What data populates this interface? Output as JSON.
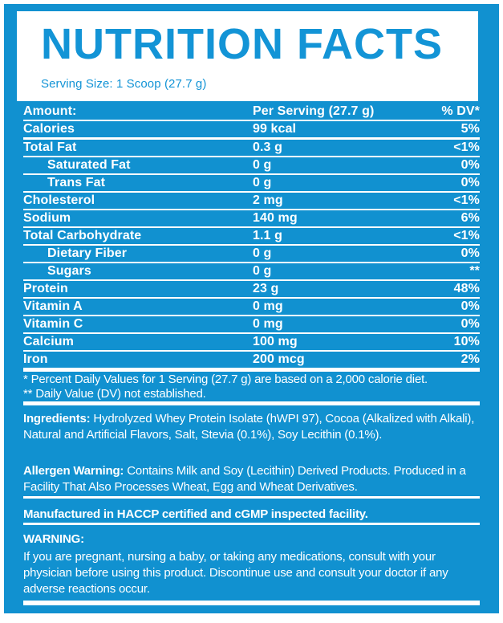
{
  "colors": {
    "blue": "#1191d0",
    "title-blue": "#1394d6",
    "white": "#ffffff"
  },
  "header": {
    "title": "NUTRITION FACTS",
    "serving_size": "Serving Size: 1 Scoop (27.7 g)"
  },
  "table": {
    "header": {
      "amount": "Amount:",
      "per_serving": "Per Serving (27.7 g)",
      "dv": "% DV*"
    },
    "rows": [
      {
        "label": "Calories",
        "value": "99 kcal",
        "dv": "5%",
        "indent": false
      },
      {
        "label": "Total Fat",
        "value": "0.3 g",
        "dv": "<1%",
        "indent": false
      },
      {
        "label": "Saturated Fat",
        "value": "0 g",
        "dv": "0%",
        "indent": true
      },
      {
        "label": "Trans Fat",
        "value": "0 g",
        "dv": "0%",
        "indent": true
      },
      {
        "label": "Cholesterol",
        "value": "2 mg",
        "dv": "<1%",
        "indent": false
      },
      {
        "label": "Sodium",
        "value": "140 mg",
        "dv": "6%",
        "indent": false
      },
      {
        "label": "Total Carbohydrate",
        "value": "1.1 g",
        "dv": "<1%",
        "indent": false
      },
      {
        "label": "Dietary Fiber",
        "value": "0 g",
        "dv": "0%",
        "indent": true
      },
      {
        "label": "Sugars",
        "value": "0 g",
        "dv": "**",
        "indent": true
      },
      {
        "label": "Protein",
        "value": "23 g",
        "dv": "48%",
        "indent": false
      },
      {
        "label": "Vitamin A",
        "value": "0 mg",
        "dv": "0%",
        "indent": false
      },
      {
        "label": "Vitamin C",
        "value": "0 mg",
        "dv": "0%",
        "indent": false
      },
      {
        "label": "Calcium",
        "value": "100 mg",
        "dv": "10%",
        "indent": false
      },
      {
        "label": "Iron",
        "value": "200 mcg",
        "dv": "2%",
        "indent": false
      }
    ]
  },
  "footnotes": [
    "* Percent Daily Values for 1 Serving (27.7 g) are based on a 2,000 calorie diet.",
    "** Daily Value (DV) not established."
  ],
  "sections": {
    "ingredients": {
      "lead": "Ingredients:",
      "text": "Hydrolyzed Whey Protein Isolate (hWPI 97), Cocoa (Alkalized with Alkali), Natural and Artificial Flavors, Salt, Stevia (0.1%), Soy Lecithin (0.1%)."
    },
    "allergen": {
      "lead": "Allergen Warning:",
      "text": "Contains Milk and Soy (Lecithin) Derived Products. Produced in a Facility That Also Processes Wheat, Egg and Wheat Derivatives."
    },
    "manufactured": "Manufactured in HACCP certified and cGMP inspected facility.",
    "warning": {
      "lead": "WARNING:",
      "text": "If you are pregnant, nursing a baby, or taking any medications, consult with your physician before using this product. Discontinue use and consult your doctor if any adverse reactions occur."
    }
  }
}
